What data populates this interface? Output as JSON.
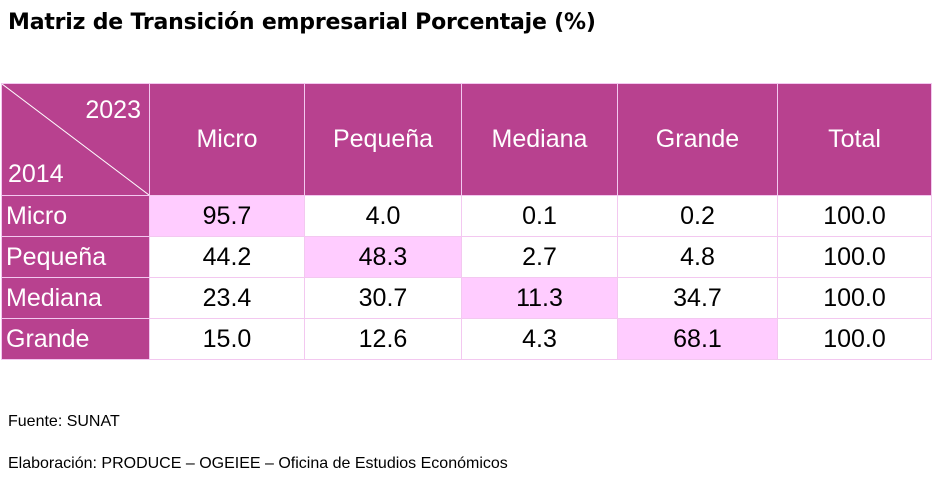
{
  "title": "Matriz de Transición empresarial Porcentaje (%)",
  "colors": {
    "header_bg": "#b8418f",
    "diagonal_bg": "#ffccff",
    "border": "#f3c8f0"
  },
  "table": {
    "corner_col_label": "2023",
    "corner_row_label": "2014",
    "columns": [
      "Micro",
      "Pequeña",
      "Mediana",
      "Grande",
      "Total"
    ],
    "rows": [
      {
        "label": "Micro",
        "cells": [
          "95.7",
          "4.0",
          "0.1",
          "0.2",
          "100.0"
        ]
      },
      {
        "label": "Pequeña",
        "cells": [
          "44.2",
          "48.3",
          "2.7",
          "4.8",
          "100.0"
        ]
      },
      {
        "label": "Mediana",
        "cells": [
          "23.4",
          "30.7",
          "11.3",
          "34.7",
          "100.0"
        ]
      },
      {
        "label": "Grande",
        "cells": [
          "15.0",
          "12.6",
          "4.3",
          "68.1",
          "100.0"
        ]
      }
    ]
  },
  "chart_data": {
    "type": "table",
    "title": "Matriz de Transición empresarial Porcentaje (%)",
    "row_axis_label": "2014",
    "column_axis_label": "2023",
    "columns": [
      "Micro",
      "Pequeña",
      "Mediana",
      "Grande",
      "Total"
    ],
    "rows": [
      "Micro",
      "Pequeña",
      "Mediana",
      "Grande"
    ],
    "values": [
      [
        95.7,
        4.0,
        0.1,
        0.2,
        100.0
      ],
      [
        44.2,
        48.3,
        2.7,
        4.8,
        100.0
      ],
      [
        23.4,
        30.7,
        11.3,
        34.7,
        100.0
      ],
      [
        15.0,
        12.6,
        4.3,
        68.1,
        100.0
      ]
    ],
    "highlight": "diagonal"
  },
  "notes": {
    "source": "Fuente: SUNAT",
    "credit": "Elaboración: PRODUCE – OGEIEE – Oficina de Estudios Económicos"
  }
}
